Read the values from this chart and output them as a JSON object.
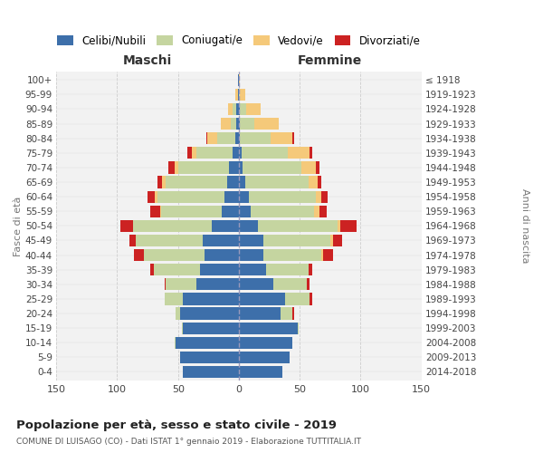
{
  "age_groups": [
    "0-4",
    "5-9",
    "10-14",
    "15-19",
    "20-24",
    "25-29",
    "30-34",
    "35-39",
    "40-44",
    "45-49",
    "50-54",
    "55-59",
    "60-64",
    "65-69",
    "70-74",
    "75-79",
    "80-84",
    "85-89",
    "90-94",
    "95-99",
    "100+"
  ],
  "birth_years": [
    "2014-2018",
    "2009-2013",
    "2004-2008",
    "1999-2003",
    "1994-1998",
    "1989-1993",
    "1984-1988",
    "1979-1983",
    "1974-1978",
    "1969-1973",
    "1964-1968",
    "1959-1963",
    "1954-1958",
    "1949-1953",
    "1944-1948",
    "1939-1943",
    "1934-1938",
    "1929-1933",
    "1924-1928",
    "1919-1923",
    "≤ 1918"
  ],
  "colors": {
    "celibi": "#3d6faa",
    "coniugati": "#c5d5a0",
    "vedovi": "#f5c97a",
    "divorziati": "#cc2222"
  },
  "maschi": {
    "celibi": [
      46,
      48,
      52,
      46,
      48,
      46,
      35,
      32,
      28,
      30,
      22,
      14,
      12,
      10,
      8,
      5,
      3,
      2,
      2,
      1,
      1
    ],
    "coniugati": [
      0,
      0,
      1,
      1,
      4,
      15,
      25,
      38,
      50,
      55,
      65,
      50,
      55,
      50,
      42,
      30,
      15,
      5,
      3,
      0,
      0
    ],
    "vedovi": [
      0,
      0,
      0,
      0,
      0,
      0,
      0,
      0,
      0,
      0,
      0,
      1,
      2,
      3,
      3,
      4,
      8,
      8,
      4,
      2,
      0
    ],
    "divorziati": [
      0,
      0,
      0,
      0,
      0,
      0,
      1,
      3,
      8,
      5,
      10,
      8,
      6,
      4,
      5,
      3,
      1,
      0,
      0,
      0,
      0
    ]
  },
  "femmine": {
    "celibi": [
      36,
      42,
      44,
      48,
      34,
      38,
      28,
      22,
      20,
      20,
      16,
      10,
      8,
      5,
      3,
      2,
      1,
      1,
      1,
      0,
      0
    ],
    "coniugati": [
      0,
      0,
      0,
      1,
      10,
      20,
      28,
      35,
      48,
      55,
      65,
      52,
      55,
      52,
      48,
      38,
      25,
      12,
      5,
      1,
      0
    ],
    "vedovi": [
      0,
      0,
      0,
      0,
      0,
      0,
      0,
      0,
      1,
      2,
      2,
      4,
      5,
      8,
      12,
      18,
      18,
      20,
      12,
      4,
      1
    ],
    "divorziati": [
      0,
      0,
      0,
      0,
      1,
      2,
      2,
      3,
      8,
      8,
      14,
      6,
      5,
      3,
      3,
      2,
      1,
      0,
      0,
      0,
      0
    ]
  },
  "xlim": 150,
  "title": "Popolazione per età, sesso e stato civile - 2019",
  "subtitle": "COMUNE DI LUISAGO (CO) - Dati ISTAT 1° gennaio 2019 - Elaborazione TUTTITALIA.IT",
  "ylabel_left": "Fasce di età",
  "ylabel_right": "Anni di nascita",
  "xlabel_left": "Maschi",
  "xlabel_right": "Femmine",
  "bg_color": "#f2f2f2",
  "grid_color": "#cccccc"
}
